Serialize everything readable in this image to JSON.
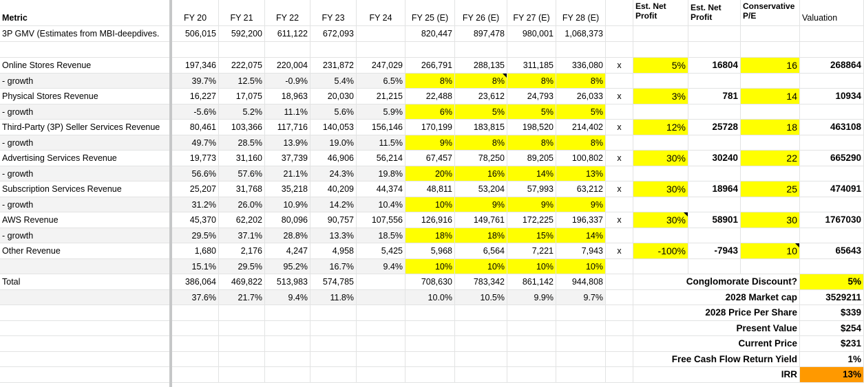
{
  "header": {
    "metric": "Metric",
    "years": [
      "FY 20",
      "FY 21",
      "FY 22",
      "FY 23",
      "FY 24",
      "FY 25 (E)",
      "FY 26 (E)",
      "FY 27 (E)",
      "FY 28 (E)"
    ],
    "est_net_a": "Est. Net Profit",
    "est_net_b": "Est. Net Profit",
    "conservative_pe": "Conservative P/E",
    "valuation": "Valuation"
  },
  "gmv": {
    "label": "3P GMV (Estimates from MBI-deepdives.",
    "values": [
      "506,015",
      "592,200",
      "611,122",
      "672,093",
      "",
      "820,447",
      "897,478",
      "980,001",
      "1,068,373"
    ]
  },
  "segments": [
    {
      "label": "Online Stores Revenue",
      "values": [
        "197,346",
        "222,075",
        "220,004",
        "231,872",
        "247,029",
        "266,791",
        "288,135",
        "311,185",
        "336,080"
      ],
      "growth": [
        "39.7%",
        "12.5%",
        "-0.9%",
        "5.4%",
        "6.5%",
        "8%",
        "8%",
        "8%",
        "8%"
      ],
      "x": "x",
      "margin": "5%",
      "profit": "16804",
      "pe": "16",
      "valuation": "268864"
    },
    {
      "label": "Physical Stores Revenue",
      "values": [
        "16,227",
        "17,075",
        "18,963",
        "20,030",
        "21,215",
        "22,488",
        "23,612",
        "24,793",
        "26,033"
      ],
      "growth": [
        "-5.6%",
        "5.2%",
        "11.1%",
        "5.6%",
        "5.9%",
        "6%",
        "5%",
        "5%",
        "5%"
      ],
      "x": "x",
      "margin": "3%",
      "profit": "781",
      "pe": "14",
      "valuation": "10934"
    },
    {
      "label": "Third-Party (3P) Seller Services Revenue",
      "values": [
        "80,461",
        "103,366",
        "117,716",
        "140,053",
        "156,146",
        "170,199",
        "183,815",
        "198,520",
        "214,402"
      ],
      "growth": [
        "49.7%",
        "28.5%",
        "13.9%",
        "19.0%",
        "11.5%",
        "9%",
        "8%",
        "8%",
        "8%"
      ],
      "x": "x",
      "margin": "12%",
      "profit": "25728",
      "pe": "18",
      "valuation": "463108"
    },
    {
      "label": "Advertising Services Revenue",
      "values": [
        "19,773",
        "31,160",
        "37,739",
        "46,906",
        "56,214",
        "67,457",
        "78,250",
        "89,205",
        "100,802"
      ],
      "growth": [
        "56.6%",
        "57.6%",
        "21.1%",
        "24.3%",
        "19.8%",
        "20%",
        "16%",
        "14%",
        "13%"
      ],
      "x": "x",
      "margin": "30%",
      "profit": "30240",
      "pe": "22",
      "valuation": "665290"
    },
    {
      "label": "Subscription Services Revenue",
      "values": [
        "25,207",
        "31,768",
        "35,218",
        "40,209",
        "44,374",
        "48,811",
        "53,204",
        "57,993",
        "63,212"
      ],
      "growth": [
        "31.2%",
        "26.0%",
        "10.9%",
        "14.2%",
        "10.4%",
        "10%",
        "9%",
        "9%",
        "9%"
      ],
      "x": "x",
      "margin": "30%",
      "profit": "18964",
      "pe": "25",
      "valuation": "474091"
    },
    {
      "label": "AWS Revenue",
      "values": [
        "45,370",
        "62,202",
        "80,096",
        "90,757",
        "107,556",
        "126,916",
        "149,761",
        "172,225",
        "196,337"
      ],
      "growth": [
        "29.5%",
        "37.1%",
        "28.8%",
        "13.3%",
        "18.5%",
        "18%",
        "18%",
        "15%",
        "14%"
      ],
      "x": "x",
      "margin": "30%",
      "profit": "58901",
      "pe": "30",
      "valuation": "1767030"
    },
    {
      "label": "Other Revenue",
      "values": [
        "1,680",
        "2,176",
        "4,247",
        "4,958",
        "5,425",
        "5,968",
        "6,564",
        "7,221",
        "7,943"
      ],
      "growth": [
        "15.1%",
        "29.5%",
        "95.2%",
        "16.7%",
        "9.4%",
        "10%",
        "10%",
        "10%",
        "10%"
      ],
      "x": "x",
      "margin": "-100%",
      "profit": "-7943",
      "pe": "10",
      "valuation": "65643"
    }
  ],
  "growth_label": " - growth",
  "total": {
    "label": "Total",
    "values": [
      "386,064",
      "469,822",
      "513,983",
      "574,785",
      "",
      "708,630",
      "783,342",
      "861,142",
      "944,808"
    ],
    "growth": [
      "37.6%",
      "21.7%",
      "9.4%",
      "11.8%",
      "",
      "10.0%",
      "10.5%",
      "9.9%",
      "9.7%"
    ]
  },
  "summary": [
    {
      "label": "Conglomorate Discount?",
      "value": "5%",
      "style": "yellow"
    },
    {
      "label": "2028 Market cap",
      "value": "3529211",
      "style": ""
    },
    {
      "label": "2028 Price Per Share",
      "value": "$339",
      "style": ""
    },
    {
      "label": "Present Value",
      "value": "$254",
      "style": ""
    },
    {
      "label": "Current Price",
      "value": "$231",
      "style": ""
    },
    {
      "label": "Free Cash Flow Return Yield",
      "value": "1%",
      "style": ""
    },
    {
      "label": "IRR",
      "value": "13%",
      "style": "orange"
    }
  ]
}
